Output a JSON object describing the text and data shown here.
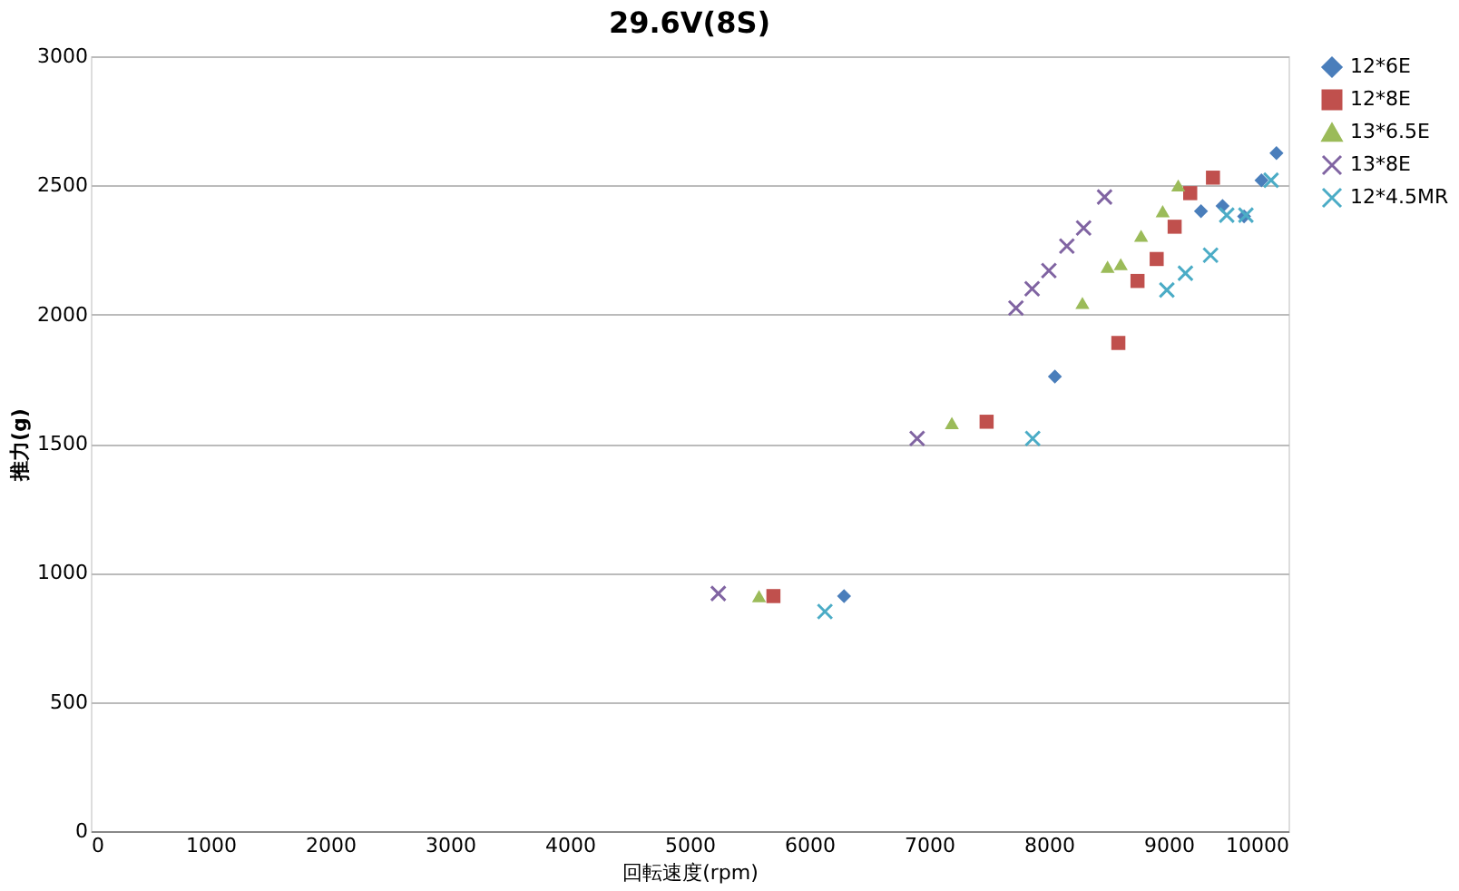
{
  "chart_data": {
    "type": "scatter",
    "title": "29.6V(8S)",
    "xlabel": "回転速度(rpm)",
    "ylabel": "推力(g)",
    "xlim": [
      0,
      10000
    ],
    "xticks": [
      0,
      1000,
      2000,
      3000,
      4000,
      5000,
      6000,
      7000,
      8000,
      9000,
      10000
    ],
    "ylim": [
      0,
      3000
    ],
    "yticks": [
      0,
      500,
      1000,
      1500,
      2000,
      2500,
      3000
    ],
    "grid": "y",
    "legend": "right",
    "series": [
      {
        "name": "12*6E",
        "color": "#4a7ebb",
        "marker": "diamond",
        "x": [
          6290,
          8050,
          9270,
          9450,
          9630,
          9775,
          9900
        ],
        "values": [
          910,
          1760,
          2400,
          2420,
          2380,
          2520,
          2625
        ]
      },
      {
        "name": "12*8E",
        "color": "#c0504d",
        "marker": "square",
        "x": [
          5700,
          7480,
          8580,
          8740,
          8900,
          9050,
          9180,
          9370
        ],
        "values": [
          910,
          1585,
          1890,
          2130,
          2215,
          2340,
          2470,
          2530
        ]
      },
      {
        "name": "13*6.5E",
        "color": "#9bbb59",
        "marker": "triangle",
        "x": [
          5580,
          7190,
          8280,
          8490,
          8600,
          8770,
          8950,
          9080
        ],
        "values": [
          910,
          1580,
          2045,
          2185,
          2195,
          2305,
          2400,
          2500
        ]
      },
      {
        "name": "13*8E",
        "color": "#8064a2",
        "marker": "cross",
        "x": [
          5240,
          6900,
          7725,
          7860,
          8000,
          8150,
          8290,
          8465
        ],
        "values": [
          920,
          1520,
          2025,
          2100,
          2170,
          2265,
          2335,
          2455
        ]
      },
      {
        "name": "12*4.5MR",
        "color": "#4bacc6",
        "marker": "cross",
        "x": [
          6130,
          7865,
          8985,
          9140,
          9350,
          9485,
          9645,
          9855
        ],
        "values": [
          850,
          1520,
          2095,
          2160,
          2230,
          2385,
          2385,
          2520
        ]
      }
    ]
  }
}
